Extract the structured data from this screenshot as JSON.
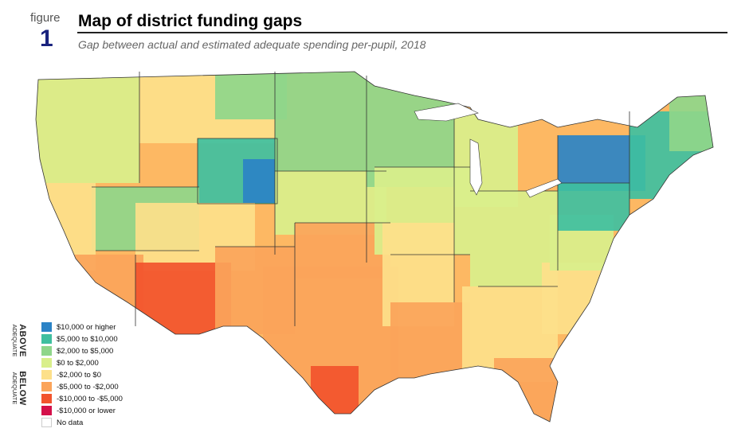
{
  "figure": {
    "word": "figure",
    "number": "1"
  },
  "title": "Map of district funding gaps",
  "subtitle": "Gap between actual and estimated adequate spending per-pupil, 2018",
  "legend": {
    "above_main": "ABOVE",
    "above_sub": "ADEQUATE",
    "below_main": "BELOW",
    "below_sub": "ADEQUATE",
    "items": [
      {
        "label": "$10,000 or higher",
        "color": "#2b83c6"
      },
      {
        "label": "$5,000 to $10,000",
        "color": "#3fbf9f"
      },
      {
        "label": "$2,000 to $5,000",
        "color": "#8fd68a"
      },
      {
        "label": "$0 to $2,000",
        "color": "#d9ef8b"
      },
      {
        "label": "-$2,000 to $0",
        "color": "#fde08a"
      },
      {
        "label": "-$5,000 to -$2,000",
        "color": "#fba45a"
      },
      {
        "label": "-$10,000 to -$5,000",
        "color": "#f2542d"
      },
      {
        "label": "-$10,000 or lower",
        "color": "#d4104a"
      },
      {
        "label": "No data",
        "color": "#ffffff"
      }
    ]
  },
  "map": {
    "land_color": "#fdb863",
    "border_color": "#333333",
    "water_color": "#ffffff"
  }
}
